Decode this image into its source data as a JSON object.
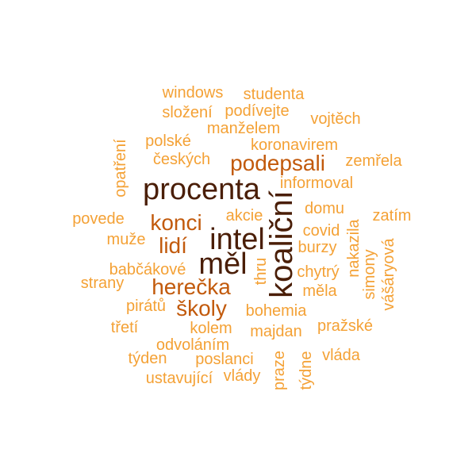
{
  "colors": {
    "c1": "#f4a135",
    "c2": "#e8821f",
    "c3": "#c25a0c",
    "c4": "#a2410a",
    "c5": "#4a1e07"
  },
  "words": {
    "windows": "windows",
    "studenta": "studenta",
    "slozeni": "složení",
    "podivejte": "podívejte",
    "vojtech": "vojtěch",
    "manzelem": "manželem",
    "polske": "polské",
    "koronavirem": "koronavirem",
    "opatreni": "opatření",
    "ceskych": "českých",
    "podepsali": "podepsali",
    "zemrela": "zemřela",
    "procenta": "procenta",
    "informoval": "informoval",
    "koalicni": "koaliční",
    "povede": "povede",
    "konci": "konci",
    "akcie": "akcie",
    "domu": "domu",
    "zatim": "zatím",
    "muze": "muže",
    "lidi": "lidí",
    "intel": "intel",
    "covid": "covid",
    "nakazila": "nakazila",
    "burzy": "burzy",
    "vasaryova": "vášáryová",
    "babcakove": "babčákové",
    "mel": "měl",
    "chytry": "chytrý",
    "simony": "simony",
    "strany": "strany",
    "herecka": "herečka",
    "thru": "thru",
    "mela": "měla",
    "piratu": "pirátů",
    "skoly": "školy",
    "bohemia": "bohemia",
    "treti": "třetí",
    "kolem": "kolem",
    "majdan": "majdan",
    "prazske": "pražské",
    "odvolanim": "odvoláním",
    "tyden": "týden",
    "poslanci": "poslanci",
    "praze": "praze",
    "vlada": "vláda",
    "tydne": "týdne",
    "ustavujici": "ustavující",
    "vlady": "vlády"
  }
}
